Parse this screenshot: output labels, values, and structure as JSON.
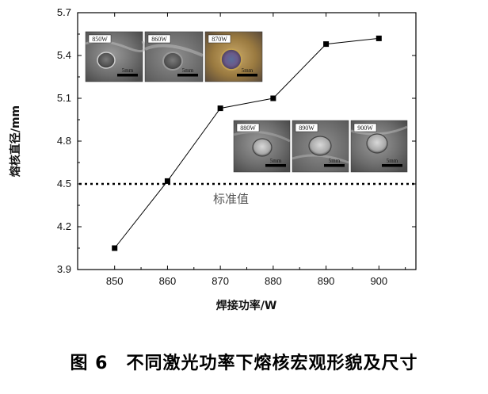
{
  "chart_data": {
    "type": "line",
    "x": [
      850,
      860,
      870,
      880,
      890,
      900
    ],
    "series": [
      {
        "values": [
          4.05,
          4.52,
          5.03,
          5.1,
          5.48,
          5.52
        ]
      }
    ],
    "xlabel": "焊接功率/W",
    "ylabel": "熔核直径/mm",
    "xlim": [
      843,
      907
    ],
    "ylim": [
      3.9,
      5.7
    ],
    "x_ticks": [
      "850",
      "860",
      "870",
      "880",
      "890",
      "900"
    ],
    "y_ticks": [
      "3.9",
      "4.2",
      "4.5",
      "4.8",
      "5.1",
      "5.4",
      "5.7"
    ],
    "reference_line": {
      "value": 4.5,
      "label": "标准值",
      "style": "dotted"
    },
    "marker": "square",
    "line_color": "#000000",
    "grid": false,
    "legend": "none"
  },
  "insets": [
    {
      "label": "850W",
      "scale": "5mm"
    },
    {
      "label": "860W",
      "scale": "5mm"
    },
    {
      "label": "870W",
      "scale": "5mm"
    },
    {
      "label": "880W",
      "scale": "5mm"
    },
    {
      "label": "890W",
      "scale": "5mm"
    },
    {
      "label": "900W",
      "scale": "5mm"
    }
  ],
  "caption": "图 6　不同激光功率下熔核宏观形貌及尺寸"
}
